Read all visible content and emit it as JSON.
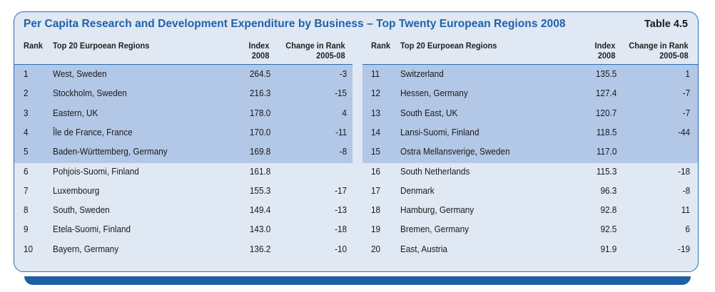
{
  "title": "Per Capita Research and Development Expenditure by Business – Top Twenty European Regions 2008",
  "table_label": "Table 4.5",
  "headers": {
    "rank": "Rank",
    "region": "Top 20 Eurpoean Regions",
    "index_l1": "Index",
    "index_l2": "2008",
    "change_l1": "Change in Rank",
    "change_l2": "2005-08"
  },
  "left_rows": [
    {
      "rank": "1",
      "region": "West, Sweden",
      "index": "264.5",
      "change": "-3"
    },
    {
      "rank": "2",
      "region": "Stockholm, Sweden",
      "index": "216.3",
      "change": "-15"
    },
    {
      "rank": "3",
      "region": "Eastern, UK",
      "index": "178.0",
      "change": "4"
    },
    {
      "rank": "4",
      "region": "Île de France, France",
      "index": "170.0",
      "change": "-11"
    },
    {
      "rank": "5",
      "region": "Baden-Württemberg, Germany",
      "index": "169.8",
      "change": "-8"
    },
    {
      "rank": "6",
      "region": "Pohjois-Suomi, Finland",
      "index": "161.8",
      "change": ""
    },
    {
      "rank": "7",
      "region": "Luxembourg",
      "index": "155.3",
      "change": "-17"
    },
    {
      "rank": "8",
      "region": "South, Sweden",
      "index": "149.4",
      "change": "-13"
    },
    {
      "rank": "9",
      "region": "Etela-Suomi, Finland",
      "index": "143.0",
      "change": "-18"
    },
    {
      "rank": "10",
      "region": "Bayern, Germany",
      "index": "136.2",
      "change": "-10"
    }
  ],
  "right_rows": [
    {
      "rank": "11",
      "region": "Switzerland",
      "index": "135.5",
      "change": "1"
    },
    {
      "rank": "12",
      "region": "Hessen, Germany",
      "index": "127.4",
      "change": "-7"
    },
    {
      "rank": "13",
      "region": "South East, UK",
      "index": "120.7",
      "change": "-7"
    },
    {
      "rank": "14",
      "region": "Lansi-Suomi, Finland",
      "index": "118.5",
      "change": "-44"
    },
    {
      "rank": "15",
      "region": "Ostra Mellansverige, Sweden",
      "index": "117.0",
      "change": ""
    },
    {
      "rank": "16",
      "region": "South Netherlands",
      "index": "115.3",
      "change": "-18"
    },
    {
      "rank": "17",
      "region": "Denmark",
      "index": "96.3",
      "change": "-8"
    },
    {
      "rank": "18",
      "region": "Hamburg, Germany",
      "index": "92.8",
      "change": "11"
    },
    {
      "rank": "19",
      "region": "Bremen, Germany",
      "index": "92.5",
      "change": "6"
    },
    {
      "rank": "20",
      "region": "East, Austria",
      "index": "91.9",
      "change": "-19"
    }
  ],
  "highlight_rows": 5,
  "colors": {
    "title": "#1e62ab",
    "border": "#2a6db3",
    "panel": "#dfe8f3",
    "highlight": "#b3c7e6",
    "base_bar": "#1f5fa3"
  }
}
